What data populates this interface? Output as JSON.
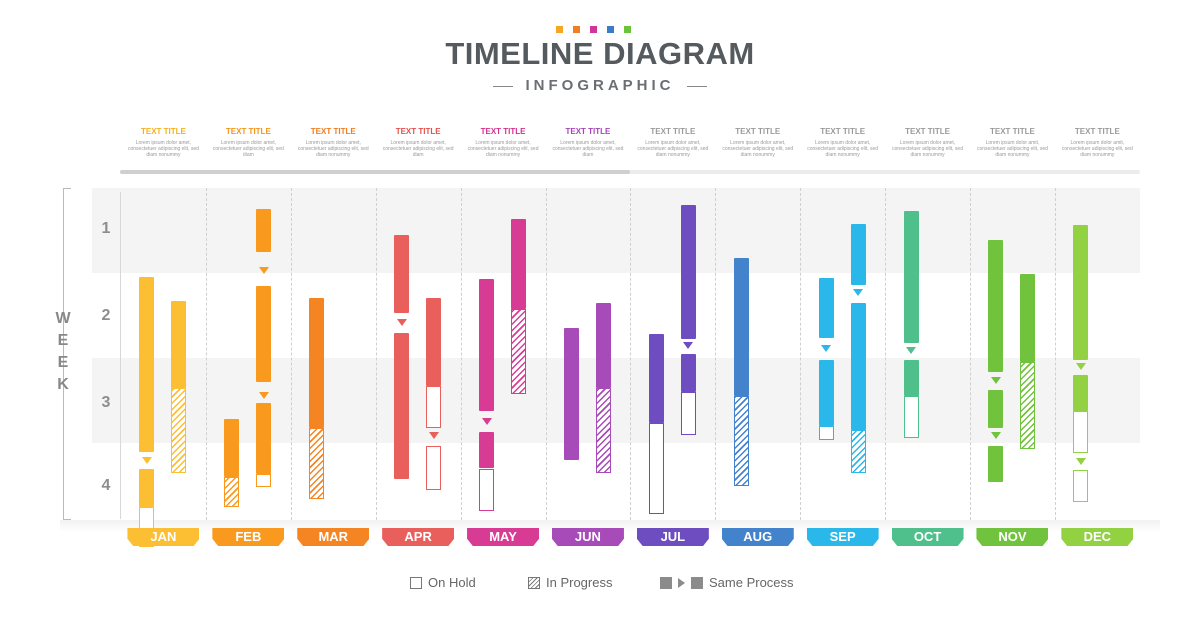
{
  "title": "TIMELINE DIAGRAM",
  "subtitle": "INFOGRAPHIC",
  "axis_label": "WEEK",
  "weeks": [
    "1",
    "2",
    "3",
    "4"
  ],
  "header_dot_colors": [
    "#f5a623",
    "#ef7f23",
    "#d0359a",
    "#3b7cc9",
    "#6ac43a"
  ],
  "progress_fraction": 0.5,
  "months": [
    {
      "name": "JAN",
      "color": "#fcbe32",
      "title_color": "#f6b01c",
      "header": {
        "title": "TEXT TITLE",
        "body": "Lorem ipsum dolor amet, consectetuer adipiscing elit, sed diam nonummy"
      }
    },
    {
      "name": "FEB",
      "color": "#f99a1f",
      "title_color": "#f6941a",
      "header": {
        "title": "TEXT TITLE",
        "body": "Lorem ipsum dolor amet, consectetuer adipiscing elit, sed diam"
      }
    },
    {
      "name": "MAR",
      "color": "#f58522",
      "title_color": "#ef7d1f",
      "header": {
        "title": "TEXT TITLE",
        "body": "Lorem ipsum dolor amet, consectetuer adipiscing elit, sed diam nonummy"
      }
    },
    {
      "name": "APR",
      "color": "#e85f5c",
      "title_color": "#e64f4c",
      "header": {
        "title": "TEXT TITLE",
        "body": "Lorem ipsum dolor amet, consectetuer adipiscing elit, sed diam"
      }
    },
    {
      "name": "MAY",
      "color": "#d73b93",
      "title_color": "#d4308e",
      "header": {
        "title": "TEXT TITLE",
        "body": "Lorem ipsum dolor amet, consectetuer adipiscing elit, sed diam nonummy"
      }
    },
    {
      "name": "JUN",
      "color": "#a64bb8",
      "title_color": "#a743bb",
      "header": {
        "title": "TEXT TITLE",
        "body": "Lorem ipsum dolor amet, consectetuer adipiscing elit, sed diam"
      }
    },
    {
      "name": "JUL",
      "color": "#6d4dc0",
      "title_color": "#9b9b9b",
      "header": {
        "title": "TEXT TITLE",
        "body": "Lorem ipsum dolor amet, consectetuer adipiscing elit, sed diam nonummy"
      }
    },
    {
      "name": "AUG",
      "color": "#4283cc",
      "title_color": "#9b9b9b",
      "header": {
        "title": "TEXT TITLE",
        "body": "Lorem ipsum dolor amet, consectetuer adipiscing elit, sed diam nonummy"
      }
    },
    {
      "name": "SEP",
      "color": "#2ab8ea",
      "title_color": "#9b9b9b",
      "header": {
        "title": "TEXT TITLE",
        "body": "Lorem ipsum dolor amet, consectetuer adipiscing elit, sed diam nonummy"
      }
    },
    {
      "name": "OCT",
      "color": "#4fbf8c",
      "title_color": "#9b9b9b",
      "header": {
        "title": "TEXT TITLE",
        "body": "Lorem ipsum dolor amet, consectetuer adipiscing elit, sed diam nonummy"
      }
    },
    {
      "name": "NOV",
      "color": "#71c23c",
      "title_color": "#9b9b9b",
      "header": {
        "title": "TEXT TITLE",
        "body": "Lorem ipsum dolor amit, consectetuer adipiscing elit, sed diam nonummy"
      }
    },
    {
      "name": "DEC",
      "color": "#92d142",
      "title_color": "#9b9b9b",
      "header": {
        "title": "TEXT TITLE",
        "body": "Lorem ipsum dolor amit, consectetuer adipiscing elit, sed diam nonummy"
      }
    }
  ],
  "bars": [
    {
      "month": 0,
      "col": 0,
      "shade": 0,
      "segs": [
        [
          "s",
          1.05,
          3.1
        ],
        [
          "s",
          3.3,
          3.75
        ],
        [
          "h",
          3.75,
          4.22
        ]
      ],
      "arrows": [
        3.2
      ]
    },
    {
      "month": 0,
      "col": 1,
      "shade": 1,
      "segs": [
        [
          "s",
          1.33,
          2.35
        ],
        [
          "p",
          2.35,
          3.35
        ]
      ],
      "arrows": []
    },
    {
      "month": 1,
      "col": 0,
      "shade": 1,
      "segs": [
        [
          "s",
          2.72,
          3.4
        ],
        [
          "p",
          3.4,
          3.75
        ]
      ],
      "arrows": []
    },
    {
      "month": 1,
      "col": 1,
      "shade": 0,
      "segs": [
        [
          "s",
          0.25,
          0.75
        ],
        [
          "s",
          1.15,
          2.28
        ],
        [
          "s",
          2.53,
          3.36
        ],
        [
          "h",
          3.36,
          3.52
        ]
      ],
      "arrows": [
        0.97,
        2.43
      ]
    },
    {
      "month": 2,
      "col": 0,
      "shade": 0,
      "segs": [
        [
          "s",
          1.29,
          2.82
        ],
        [
          "p",
          2.82,
          3.66
        ]
      ],
      "arrows": []
    },
    {
      "month": 3,
      "col": 0,
      "shade": 0,
      "segs": [
        [
          "s",
          0.55,
          1.47
        ],
        [
          "s",
          1.7,
          3.42
        ]
      ],
      "arrows": [
        1.58
      ]
    },
    {
      "month": 3,
      "col": 1,
      "shade": 1,
      "segs": [
        [
          "s",
          1.29,
          2.33
        ],
        [
          "h",
          2.33,
          2.82
        ]
      ],
      "arrows": []
    },
    {
      "month": 3,
      "col": 1,
      "shade": 1,
      "segs": [
        [
          "h",
          3.03,
          3.55
        ]
      ],
      "arrows": [
        2.9
      ]
    },
    {
      "month": 4,
      "col": 0,
      "shade": 0,
      "segs": [
        [
          "s",
          1.07,
          2.62
        ],
        [
          "s",
          2.87,
          3.3
        ],
        [
          "h",
          3.3,
          3.8
        ]
      ],
      "arrows": [
        2.74
      ]
    },
    {
      "month": 4,
      "col": 1,
      "shade": 1,
      "segs": [
        [
          "s",
          0.37,
          1.42
        ],
        [
          "p",
          1.42,
          2.42
        ]
      ],
      "arrows": []
    },
    {
      "month": 5,
      "col": 0,
      "shade": 0,
      "segs": [
        [
          "s",
          1.65,
          3.2
        ]
      ],
      "arrows": []
    },
    {
      "month": 5,
      "col": 1,
      "shade": 1,
      "segs": [
        [
          "s",
          1.35,
          2.35
        ],
        [
          "p",
          2.35,
          3.35
        ]
      ],
      "arrows": []
    },
    {
      "month": 6,
      "col": 0,
      "shade": 0,
      "segs": [
        [
          "s",
          1.72,
          2.76
        ],
        [
          "h",
          2.76,
          3.84
        ]
      ],
      "arrows": []
    },
    {
      "month": 6,
      "col": 1,
      "shade": 1,
      "segs": [
        [
          "s",
          0.2,
          1.78
        ],
        [
          "s",
          1.95,
          2.4
        ],
        [
          "h",
          2.4,
          2.9
        ]
      ],
      "arrows": [
        1.85
      ]
    },
    {
      "month": 7,
      "col": 0,
      "shade": 0,
      "segs": [
        [
          "s",
          0.82,
          2.45
        ],
        [
          "p",
          2.45,
          3.5
        ]
      ],
      "arrows": []
    },
    {
      "month": 8,
      "col": 0,
      "shade": 0,
      "segs": [
        [
          "s",
          1.06,
          1.76
        ],
        [
          "s",
          2.02,
          2.8
        ],
        [
          "h",
          2.8,
          2.97
        ]
      ],
      "arrows": [
        1.88
      ]
    },
    {
      "month": 8,
      "col": 1,
      "shade": 1,
      "segs": [
        [
          "s",
          0.42,
          1.14
        ],
        [
          "s",
          1.35,
          2.85
        ],
        [
          "p",
          2.85,
          3.35
        ]
      ],
      "arrows": [
        1.22
      ]
    },
    {
      "month": 9,
      "col": 0,
      "shade": 0,
      "segs": [
        [
          "s",
          0.27,
          1.82
        ],
        [
          "s",
          2.02,
          2.45
        ],
        [
          "h",
          2.45,
          2.94
        ]
      ],
      "arrows": [
        1.9
      ]
    },
    {
      "month": 10,
      "col": 0,
      "shade": 0,
      "segs": [
        [
          "s",
          0.61,
          2.17
        ],
        [
          "s",
          2.38,
          2.82
        ],
        [
          "s",
          3.03,
          3.46
        ]
      ],
      "arrows": [
        2.26,
        2.91
      ]
    },
    {
      "month": 10,
      "col": 1,
      "shade": 1,
      "segs": [
        [
          "s",
          1.01,
          2.05
        ],
        [
          "p",
          2.05,
          3.07
        ]
      ],
      "arrows": []
    },
    {
      "month": 11,
      "col": 0,
      "shade": 0,
      "segs": [
        [
          "s",
          0.43,
          2.02
        ],
        [
          "s",
          2.2,
          2.62
        ],
        [
          "h",
          2.62,
          3.12
        ],
        [
          "h",
          3.32,
          3.7
        ]
      ],
      "arrows": [
        2.09,
        3.21
      ]
    }
  ],
  "legend": {
    "on_hold": "On Hold",
    "in_progress": "In Progress",
    "same_process": "Same Process"
  }
}
